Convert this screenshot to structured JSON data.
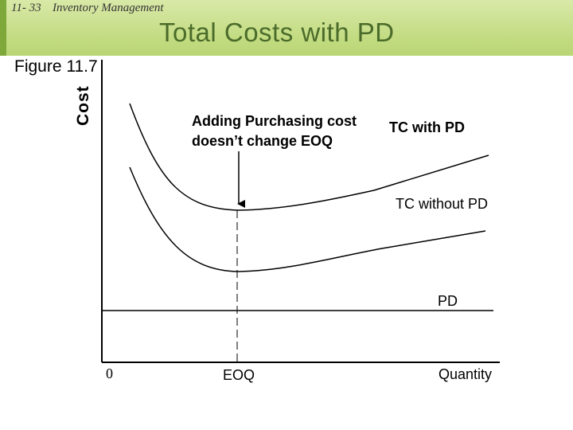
{
  "header": {
    "slide_number": "11- 33",
    "chapter": "Inventory Management",
    "title": "Total Costs with PD"
  },
  "figure_label": "Figure 11.7",
  "y_axis_label": "Cost",
  "annotation": {
    "line1": "Adding Purchasing cost",
    "line2": "doesn’t change EOQ"
  },
  "curves": {
    "tc_with_pd": "TC with PD",
    "tc_without_pd": "TC without PD",
    "pd": "PD"
  },
  "x_axis": {
    "origin": "0",
    "eoq": "EOQ",
    "label": "Quantity"
  },
  "colors": {
    "header_band": "#c5dd86",
    "title": "#4a6b2a",
    "lines": "#000000"
  }
}
